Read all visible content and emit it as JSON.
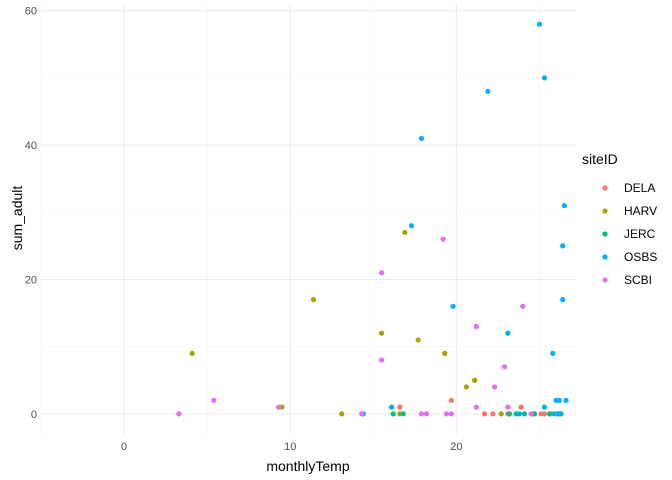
{
  "chart_data": {
    "type": "scatter",
    "xlabel": "monthlyTemp",
    "ylabel": "sum_adult",
    "xlim": [
      -5,
      27.2
    ],
    "ylim": [
      -3,
      61
    ],
    "x_ticks": [
      0,
      10,
      20
    ],
    "y_ticks": [
      0,
      20,
      40,
      60
    ],
    "x_minor_ticks": [
      -5,
      5,
      15,
      25
    ],
    "y_minor_ticks": [
      10,
      30,
      50
    ],
    "grid": true,
    "legend": {
      "title": "siteID",
      "placement": "right"
    },
    "series": [
      {
        "name": "DELA",
        "color": "#F8766D",
        "points": [
          [
            16.6,
            1
          ],
          [
            19.7,
            2
          ],
          [
            21.7,
            0
          ],
          [
            22.2,
            0
          ],
          [
            23.1,
            0
          ],
          [
            23.9,
            1
          ],
          [
            24.6,
            0
          ],
          [
            25.1,
            0
          ],
          [
            25.3,
            0
          ],
          [
            25.7,
            0
          ],
          [
            26.1,
            0
          ]
        ]
      },
      {
        "name": "HARV",
        "color": "#A3A500",
        "points": [
          [
            4.1,
            9
          ],
          [
            9.5,
            1
          ],
          [
            11.4,
            17
          ],
          [
            13.1,
            0
          ],
          [
            15.5,
            12
          ],
          [
            16.6,
            0
          ],
          [
            16.9,
            27
          ],
          [
            17.7,
            11
          ],
          [
            19.3,
            9
          ],
          [
            20.6,
            4
          ],
          [
            21.1,
            5
          ],
          [
            22.7,
            0
          ]
        ]
      },
      {
        "name": "JERC",
        "color": "#00BF7D",
        "points": [
          [
            16.2,
            0
          ],
          [
            16.8,
            0
          ],
          [
            23.2,
            0
          ],
          [
            23.6,
            0
          ],
          [
            24.1,
            0
          ],
          [
            24.7,
            0
          ],
          [
            25.6,
            0
          ],
          [
            26.1,
            0
          ],
          [
            26.3,
            0
          ]
        ]
      },
      {
        "name": "OSBS",
        "color": "#00B0F6",
        "points": [
          [
            14.4,
            0
          ],
          [
            16.1,
            1
          ],
          [
            17.3,
            28
          ],
          [
            17.9,
            41
          ],
          [
            19.8,
            16
          ],
          [
            21.9,
            48
          ],
          [
            23.1,
            12
          ],
          [
            23.8,
            0
          ],
          [
            25.0,
            58
          ],
          [
            25.3,
            1
          ],
          [
            25.3,
            50
          ],
          [
            25.8,
            9
          ],
          [
            26.0,
            2
          ],
          [
            26.2,
            2
          ],
          [
            26.4,
            25
          ],
          [
            26.4,
            17
          ],
          [
            26.5,
            31
          ],
          [
            26.6,
            2
          ],
          [
            25.9,
            0
          ],
          [
            26.2,
            0
          ]
        ]
      },
      {
        "name": "SCBI",
        "color": "#E76BF3",
        "points": [
          [
            3.3,
            0
          ],
          [
            5.4,
            2
          ],
          [
            9.3,
            1
          ],
          [
            14.3,
            0
          ],
          [
            15.5,
            21
          ],
          [
            15.5,
            8
          ],
          [
            17.9,
            0
          ],
          [
            18.2,
            0
          ],
          [
            19.2,
            26
          ],
          [
            19.4,
            0
          ],
          [
            19.7,
            0
          ],
          [
            21.2,
            13
          ],
          [
            21.2,
            1
          ],
          [
            22.3,
            4
          ],
          [
            22.9,
            7
          ],
          [
            23.1,
            1
          ],
          [
            24.0,
            16
          ],
          [
            24.5,
            0
          ]
        ]
      }
    ]
  }
}
